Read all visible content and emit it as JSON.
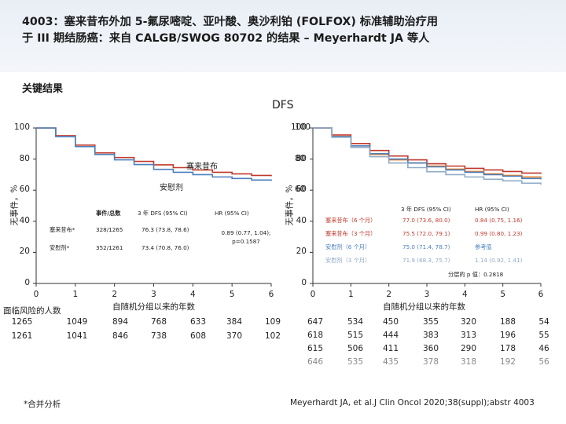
{
  "title_line1": "4003：塞来昔布外加 5-氟尿嘧啶、亚叶酸、奥沙利铂 (FOLFOX) 标准辅助治疗用",
  "title_line2": "于 III 期结肠癌：来自 CALGB/SWOG 80702 的结果 – Meyerhardt JA 等人",
  "section_header": "关键结果",
  "dfs_label": "DFS",
  "colors": {
    "celecoxib": "#c0392b",
    "placebo": "#4a7fbd",
    "celecoxib_3yr": "#e67e22",
    "placebo_3yr": "#8faac8",
    "grey": "#999999"
  },
  "chart_data": [
    {
      "type": "line",
      "name": "left-km",
      "ylabel": "无事件，%",
      "xlabel": "自随机分组以来的年数",
      "ylim": [
        0,
        100
      ],
      "xlim": [
        0,
        6
      ],
      "yticks": [
        "0",
        "20",
        "40",
        "60",
        "80",
        "100"
      ],
      "xticks": [
        "0",
        "1",
        "2",
        "3",
        "4",
        "5",
        "6"
      ],
      "curve_labels": {
        "celecoxib": "塞来昔布",
        "placebo": "安慰剂"
      },
      "series": [
        {
          "name": "塞来昔布",
          "color": "#c0392b",
          "x": [
            0,
            0.5,
            1,
            1.5,
            2,
            2.5,
            3,
            3.5,
            4,
            4.5,
            5,
            5.5,
            6
          ],
          "y": [
            100,
            95,
            89,
            84,
            81,
            78.5,
            76.3,
            74.5,
            73,
            71.5,
            70.5,
            69.5,
            69
          ]
        },
        {
          "name": "安慰剂",
          "color": "#4a7fbd",
          "x": [
            0,
            0.5,
            1,
            1.5,
            2,
            2.5,
            3,
            3.5,
            4,
            4.5,
            5,
            5.5,
            6
          ],
          "y": [
            100,
            94.5,
            88,
            83,
            79.5,
            76.5,
            73.4,
            71.5,
            70,
            68.5,
            67.5,
            66.5,
            66
          ]
        }
      ],
      "table": {
        "headers": [
          "事件/总数",
          "3 年 DFS (95% CI)",
          "HR (95% CI)"
        ],
        "rows": [
          {
            "label": "塞来昔布*",
            "events": "328/1265",
            "dfs": "76.3 (73.8, 78.6)"
          },
          {
            "label": "安慰剂*",
            "events": "352/1261",
            "dfs": "73.4 (70.8, 76.0)"
          }
        ],
        "hr_line1": "0.89 (0.77, 1.04);",
        "hr_line2": "p=0.1587"
      },
      "risk_label": "面临风险的人数",
      "risk_rows": [
        [
          "1265",
          "1049",
          "894",
          "768",
          "633",
          "384",
          "109"
        ],
        [
          "1261",
          "1041",
          "846",
          "738",
          "608",
          "370",
          "102"
        ]
      ]
    },
    {
      "type": "line",
      "name": "right-km",
      "ylabel": "无事件，%",
      "xlabel": "自随机分组以来的年数",
      "ylim": [
        0,
        100
      ],
      "xlim": [
        0,
        6
      ],
      "yticks": [
        "0",
        "20",
        "40",
        "60",
        "80",
        "100"
      ],
      "xticks": [
        "0",
        "1",
        "2",
        "3",
        "4",
        "5",
        "6"
      ],
      "series": [
        {
          "name": "塞来昔布（6 个月）",
          "color": "#c0392b",
          "x": [
            0,
            0.5,
            1,
            1.5,
            2,
            2.5,
            3,
            3.5,
            4,
            4.5,
            5,
            5.5,
            6
          ],
          "y": [
            100,
            95.5,
            90,
            85.5,
            82,
            79.5,
            77,
            75.5,
            74,
            73,
            72,
            71,
            70.5
          ]
        },
        {
          "name": "塞来昔布（3 个月）",
          "color": "#e67e22",
          "x": [
            0,
            0.5,
            1,
            1.5,
            2,
            2.5,
            3,
            3.5,
            4,
            4.5,
            5,
            5.5,
            6
          ],
          "y": [
            100,
            94.5,
            88.5,
            83,
            79.5,
            77.5,
            75.5,
            73.5,
            72,
            70.5,
            69.5,
            68.5,
            68
          ]
        },
        {
          "name": "安慰剂（6 个月）",
          "color": "#4a7fbd",
          "x": [
            0,
            0.5,
            1,
            1.5,
            2,
            2.5,
            3,
            3.5,
            4,
            4.5,
            5,
            5.5,
            6
          ],
          "y": [
            100,
            94.5,
            88.5,
            83.5,
            80,
            77.5,
            75,
            73,
            71.5,
            70,
            69,
            67.5,
            67
          ]
        },
        {
          "name": "安慰剂（3 个月）",
          "color": "#8faac8",
          "x": [
            0,
            0.5,
            1,
            1.5,
            2,
            2.5,
            3,
            3.5,
            4,
            4.5,
            5,
            5.5,
            6
          ],
          "y": [
            100,
            94,
            87.5,
            81.5,
            77.5,
            74.5,
            71.9,
            70,
            68.5,
            67,
            66,
            64.5,
            63.5
          ]
        }
      ],
      "table": {
        "headers": [
          "3 年 DFS (95% CI)",
          "HR (95% CI)"
        ],
        "rows": [
          {
            "label": "塞来昔布（6 个月）",
            "dfs": "77.0 (73.6, 80.0)",
            "hr": "0.84 (0.75, 1.16)",
            "color": "#c0392b"
          },
          {
            "label": "塞来昔布（3 个月）",
            "dfs": "75.5 (72.0, 79.1)",
            "hr": "0.99 (0.80, 1.23)",
            "color": "#c0392b"
          },
          {
            "label": "安慰剂（6 个月）",
            "dfs": "75.0 (71.4, 78.7)",
            "hr": "参考值",
            "color": "#4a7fbd"
          },
          {
            "label": "安慰剂（3 个月）",
            "dfs": "71.9 (68.3, 75.7)",
            "hr": "1.14 (0.92, 1.41)",
            "color": "#8faac8"
          }
        ],
        "p_text": "分层的 p 值：0.2818"
      },
      "risk_rows": [
        [
          "647",
          "534",
          "450",
          "355",
          "320",
          "188",
          "54"
        ],
        [
          "618",
          "515",
          "444",
          "383",
          "313",
          "196",
          "55"
        ],
        [
          "615",
          "506",
          "411",
          "360",
          "290",
          "178",
          "46"
        ],
        [
          "646",
          "535",
          "435",
          "378",
          "318",
          "192",
          "56"
        ]
      ]
    }
  ],
  "footnote": "*合并分析",
  "citation": "Meyerhardt JA, et al.J Clin Oncol 2020;38(suppl);abstr 4003"
}
